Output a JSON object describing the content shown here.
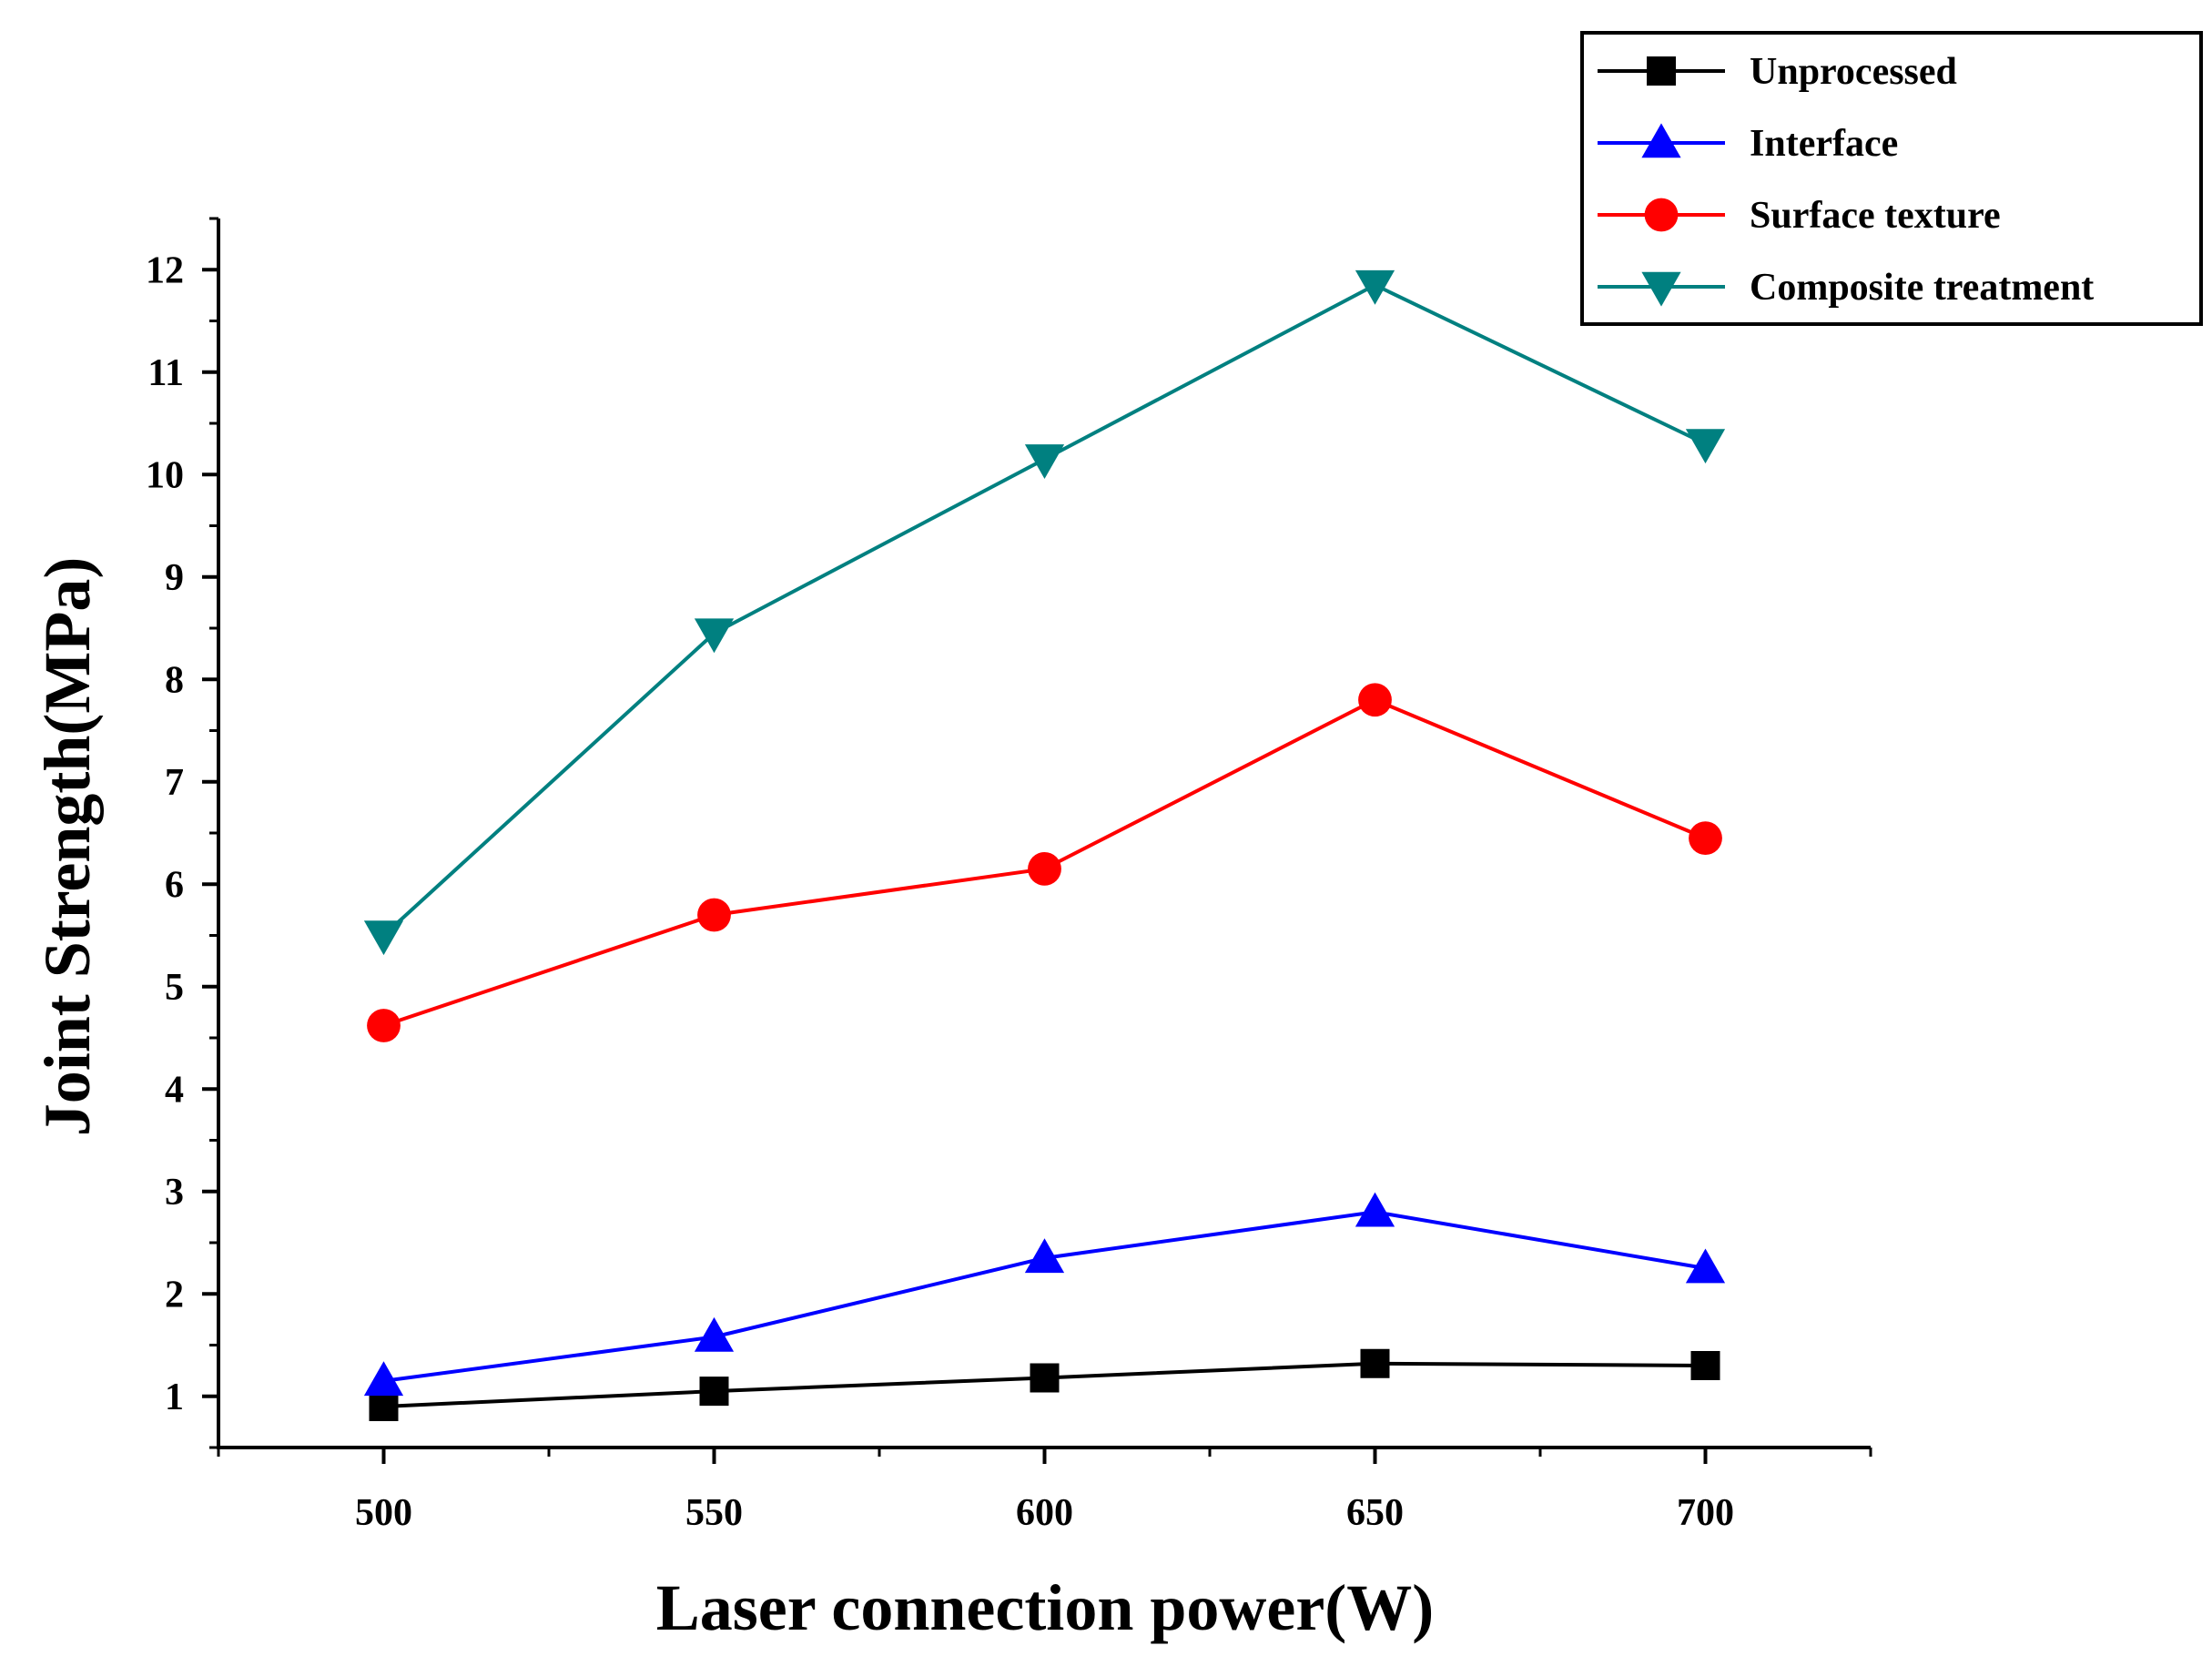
{
  "chart_data": {
    "type": "line",
    "title": "",
    "xlabel": "Laser connection power(W)",
    "ylabel": "Joint Strength(MPa)",
    "x": [
      500,
      550,
      600,
      650,
      700
    ],
    "xticks": [
      "500",
      "550",
      "600",
      "650",
      "700"
    ],
    "xlim": [
      475,
      725
    ],
    "yticks": [
      "1",
      "2",
      "3",
      "4",
      "5",
      "6",
      "7",
      "8",
      "9",
      "10",
      "11",
      "12"
    ],
    "ylim": [
      0.5,
      12.5
    ],
    "grid": false,
    "legend_position": "top-right",
    "series": [
      {
        "name": "Unprocessed",
        "color": "#000000",
        "marker": "square",
        "values": [
          0.9,
          1.05,
          1.18,
          1.32,
          1.3
        ]
      },
      {
        "name": "Interface",
        "color": "#0000ff",
        "marker": "triangle-up",
        "values": [
          1.15,
          1.58,
          2.35,
          2.8,
          2.25
        ]
      },
      {
        "name": "Surface texture",
        "color": "#ff0000",
        "marker": "circle",
        "values": [
          4.62,
          5.7,
          6.15,
          7.8,
          6.45
        ]
      },
      {
        "name": "Composite treatment",
        "color": "#008080",
        "marker": "triangle-down",
        "values": [
          5.5,
          8.45,
          10.15,
          11.85,
          10.3
        ]
      }
    ]
  }
}
